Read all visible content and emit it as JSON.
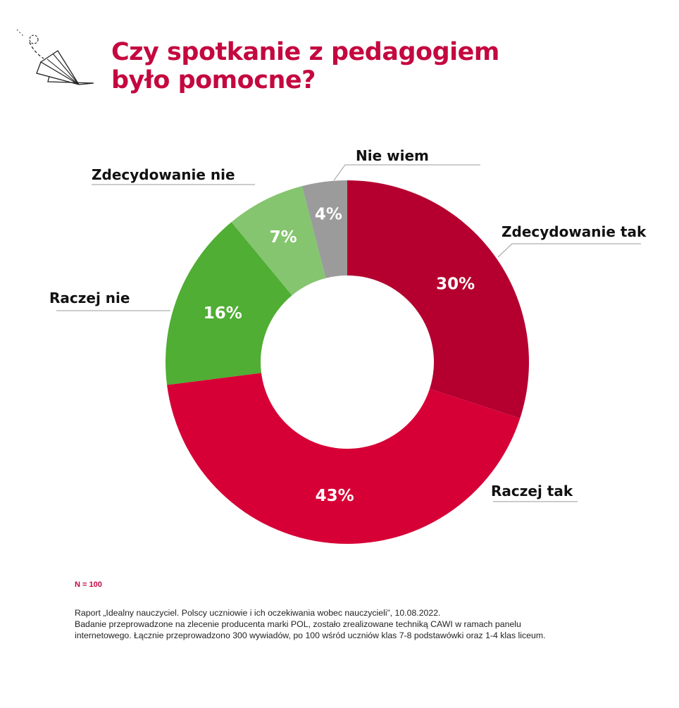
{
  "title": [
    "Czy spotkanie z pedagogiem",
    "było pomocne?"
  ],
  "chart_data": {
    "type": "pie",
    "variant": "donut",
    "title": "Czy spotkanie z pedagogiem było pomocne?",
    "start": "top, clockwise",
    "categories": [
      "Zdecydowanie tak",
      "Raczej tak",
      "Raczej nie",
      "Zdecydowanie nie",
      "Nie wiem"
    ],
    "values": [
      30,
      43,
      16,
      7,
      4
    ],
    "labels": [
      "30%",
      "43%",
      "16%",
      "7%",
      "4%"
    ],
    "colors": [
      "#b5002f",
      "#d70036",
      "#4fae33",
      "#85c56f",
      "#9b9b9b"
    ]
  },
  "sample": "N = 100",
  "source": [
    "Raport „Idealny nauczyciel. Polscy uczniowie i ich oczekiwania wobec nauczycieli”, 10.08.2022.",
    "Badanie przeprowadzone na zlecenie producenta marki POL, zostało zrealizowane techniką CAWI w ramach panelu",
    "internetowego. Łącznie przeprowadzono 300 wywiadów, po 100 wśród uczniów klas 7-8 podstawówki oraz 1-4 klas liceum."
  ],
  "icons": {
    "decoration": "paper-plane-icon"
  }
}
